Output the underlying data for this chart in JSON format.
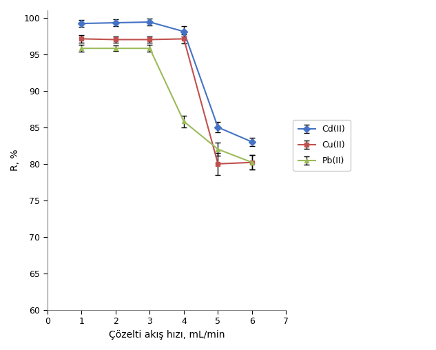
{
  "x": [
    1,
    2,
    3,
    4,
    5,
    6
  ],
  "cd_y": [
    99.2,
    99.3,
    99.4,
    98.1,
    85.0,
    83.0
  ],
  "cu_y": [
    97.1,
    97.0,
    97.0,
    97.1,
    80.0,
    80.2
  ],
  "pb_y": [
    95.8,
    95.8,
    95.8,
    85.8,
    82.0,
    80.2
  ],
  "cd_err": [
    0.5,
    0.5,
    0.5,
    0.7,
    0.7,
    0.6
  ],
  "cu_err": [
    0.5,
    0.4,
    0.4,
    0.6,
    1.5,
    1.0
  ],
  "pb_err": [
    0.5,
    0.4,
    0.5,
    0.8,
    0.9,
    1.0
  ],
  "cd_color": "#4472C4",
  "cu_color": "#C0504D",
  "pb_color": "#9BBB59",
  "xlabel": "Çözelti akış hızı, mL/min",
  "ylabel": "R, %",
  "xlim": [
    0,
    7
  ],
  "ylim": [
    60,
    101
  ],
  "yticks": [
    60,
    65,
    70,
    75,
    80,
    85,
    90,
    95,
    100
  ],
  "xticks": [
    0,
    1,
    2,
    3,
    4,
    5,
    6,
    7
  ],
  "legend_labels": [
    "Cd(II)",
    "Cu(II)",
    "Pb(II)"
  ],
  "figsize": [
    6.33,
    5.08
  ],
  "dpi": 100
}
